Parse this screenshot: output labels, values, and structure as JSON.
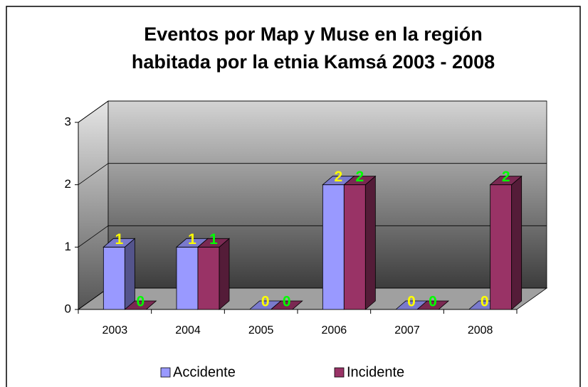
{
  "chart_data": {
    "type": "bar3d",
    "title": [
      "Eventos por Map y Muse en la región",
      "habitada por la etnia Kamsá 2003 - 2008"
    ],
    "categories": [
      "2003",
      "2004",
      "2005",
      "2006",
      "2007",
      "2008"
    ],
    "series": [
      {
        "name": "Accidente",
        "color": "#9999ff",
        "label_color": "#ffff00",
        "values": [
          1,
          1,
          0,
          2,
          0,
          0
        ]
      },
      {
        "name": "Incidente",
        "color": "#993366",
        "label_color": "#00ff00",
        "values": [
          0,
          1,
          0,
          2,
          0,
          2
        ]
      }
    ],
    "ylim": [
      0,
      3
    ],
    "yticks": [
      0,
      1,
      2,
      3
    ],
    "grid": true,
    "legend": "bottom"
  }
}
